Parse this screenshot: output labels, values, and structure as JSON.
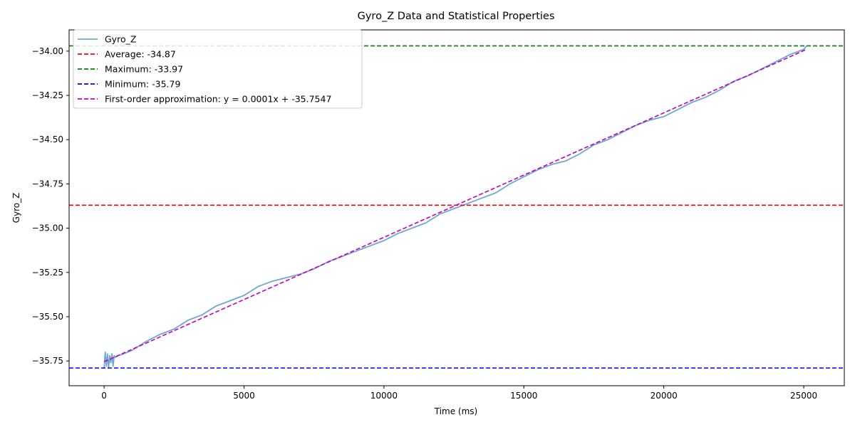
{
  "chart_data": {
    "type": "line",
    "title": "Gyro_Z Data and Statistical Properties",
    "xlabel": "Time (ms)",
    "ylabel": "Gyro_Z",
    "xlim": [
      -1250,
      26450
    ],
    "ylim": [
      -35.89,
      -33.88
    ],
    "x_ticks": [
      0,
      5000,
      10000,
      15000,
      20000,
      25000
    ],
    "y_ticks": [
      -34.0,
      -34.25,
      -34.5,
      -34.75,
      -35.0,
      -35.25,
      -35.5,
      -35.75
    ],
    "y_tick_labels": [
      "−34.00",
      "−34.25",
      "−34.50",
      "−34.75",
      "−35.00",
      "−35.25",
      "−35.50",
      "−35.75"
    ],
    "x_tick_labels": [
      "0",
      "5000",
      "10000",
      "15000",
      "20000",
      "25000"
    ],
    "grid": false,
    "legend_position": "top-left",
    "series": [
      {
        "name": "Gyro_Z",
        "color": "#6fa8cf",
        "style": "solid",
        "x": [
          0,
          40,
          80,
          120,
          160,
          200,
          240,
          280,
          320,
          360,
          400,
          500,
          700,
          1000,
          1500,
          2000,
          2500,
          3000,
          3500,
          4000,
          4500,
          5000,
          5500,
          6000,
          6500,
          7000,
          7500,
          8000,
          8500,
          9000,
          9500,
          10000,
          10500,
          11000,
          11500,
          12000,
          12500,
          13000,
          13500,
          14000,
          14500,
          15000,
          15500,
          16000,
          16500,
          17000,
          17500,
          18000,
          18500,
          19000,
          19500,
          20000,
          20500,
          21000,
          21500,
          22000,
          22500,
          23000,
          23500,
          24000,
          24500,
          25000,
          25100
        ],
        "values": [
          -35.79,
          -35.7,
          -35.78,
          -35.71,
          -35.79,
          -35.72,
          -35.76,
          -35.71,
          -35.78,
          -35.72,
          -35.73,
          -35.72,
          -35.71,
          -35.69,
          -35.64,
          -35.6,
          -35.57,
          -35.52,
          -35.49,
          -35.44,
          -35.41,
          -35.38,
          -35.33,
          -35.3,
          -35.28,
          -35.26,
          -35.23,
          -35.19,
          -35.16,
          -35.13,
          -35.1,
          -35.07,
          -35.03,
          -35.0,
          -34.97,
          -34.92,
          -34.89,
          -34.86,
          -34.83,
          -34.8,
          -34.75,
          -34.71,
          -34.67,
          -34.64,
          -34.62,
          -34.58,
          -34.53,
          -34.5,
          -34.46,
          -34.42,
          -34.39,
          -34.37,
          -34.33,
          -34.29,
          -34.26,
          -34.22,
          -34.17,
          -34.14,
          -34.1,
          -34.06,
          -34.02,
          -33.99,
          -33.97
        ]
      },
      {
        "name": "Average: -34.87",
        "color": "#ff0000",
        "style": "dashed",
        "value": -34.87
      },
      {
        "name": "Maximum: -33.97",
        "color": "#008000",
        "style": "dashed",
        "value": -33.97
      },
      {
        "name": "Minimum: -35.79",
        "color": "#0000ff",
        "style": "dashed",
        "value": -35.79
      },
      {
        "name": "First-order approximation: y = 0.0001x + -35.7547",
        "color": "#bf00bf",
        "style": "dashed",
        "x": [
          0,
          25100
        ],
        "values": [
          -35.7547,
          -33.99
        ]
      }
    ]
  }
}
